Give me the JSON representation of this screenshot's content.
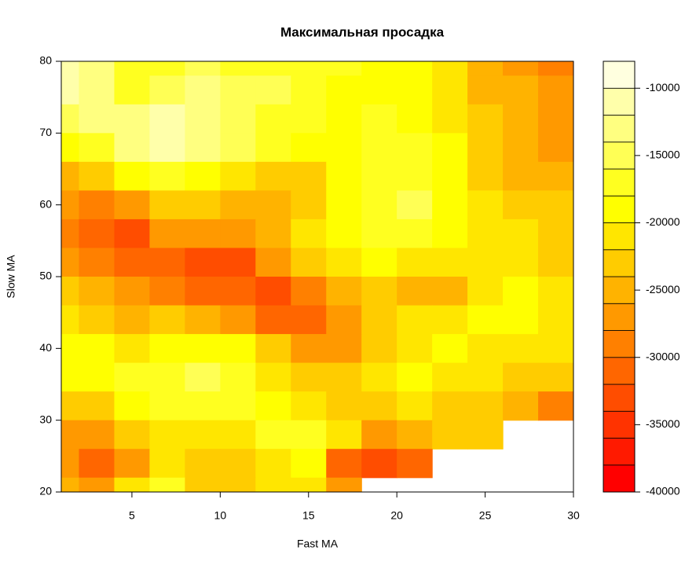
{
  "chart_data": {
    "type": "filled-contour",
    "title": "Максимальная просадка",
    "x_label": "Fast MA",
    "y_label": "Slow MA",
    "x": [
      1,
      3,
      5,
      7,
      9,
      11,
      13,
      15,
      17,
      19,
      21,
      23,
      25,
      27,
      29
    ],
    "y": [
      80,
      76,
      72,
      68,
      64,
      60,
      56,
      52,
      48,
      44,
      40,
      36,
      32,
      28,
      24,
      20
    ],
    "z": [
      [
        -12000,
        -14000,
        -17000,
        -17000,
        -16000,
        -17000,
        -17000,
        -17000,
        -18000,
        -19000,
        -20000,
        -22000,
        -26000,
        -28000,
        -30000
      ],
      [
        -11000,
        -14000,
        -17000,
        -16000,
        -14000,
        -15000,
        -16000,
        -17000,
        -19000,
        -20000,
        -20000,
        -22000,
        -25000,
        -26000,
        -28000
      ],
      [
        -15000,
        -14000,
        -13000,
        -12000,
        -13000,
        -15000,
        -17000,
        -18000,
        -19000,
        -18000,
        -19000,
        -21000,
        -24000,
        -26000,
        -28000
      ],
      [
        -20000,
        -17000,
        -13000,
        -12000,
        -13000,
        -15000,
        -18000,
        -20000,
        -19000,
        -17000,
        -17000,
        -20000,
        -23000,
        -25000,
        -27000
      ],
      [
        -25000,
        -24000,
        -20000,
        -18000,
        -19000,
        -22000,
        -24000,
        -24000,
        -20000,
        -18000,
        -17000,
        -20000,
        -23000,
        -25000,
        -26000
      ],
      [
        -28000,
        -30000,
        -28000,
        -24000,
        -24000,
        -25000,
        -26000,
        -24000,
        -20000,
        -17000,
        -16000,
        -19000,
        -22000,
        -24000,
        -24000
      ],
      [
        -30000,
        -32000,
        -33000,
        -28000,
        -27000,
        -27000,
        -25000,
        -22000,
        -19000,
        -17000,
        -17000,
        -20000,
        -22000,
        -22000,
        -24000
      ],
      [
        -27000,
        -30000,
        -31000,
        -31000,
        -33000,
        -33000,
        -28000,
        -24000,
        -21000,
        -20000,
        -21000,
        -22000,
        -22000,
        -21000,
        -24000
      ],
      [
        -24000,
        -26000,
        -28000,
        -30000,
        -32000,
        -31000,
        -33000,
        -29000,
        -25000,
        -24000,
        -25000,
        -25000,
        -22000,
        -20000,
        -22000
      ],
      [
        -22000,
        -24000,
        -26000,
        -24000,
        -26000,
        -28000,
        -31000,
        -31000,
        -27000,
        -23000,
        -22000,
        -21000,
        -20000,
        -20000,
        -21000
      ],
      [
        -20000,
        -20000,
        -22000,
        -20000,
        -19000,
        -20000,
        -24000,
        -28000,
        -27000,
        -24000,
        -21000,
        -20000,
        -21000,
        -21000,
        -22000
      ],
      [
        -20000,
        -19000,
        -18000,
        -17000,
        -16000,
        -17000,
        -21000,
        -24000,
        -23000,
        -21000,
        -20000,
        -21000,
        -22000,
        -23000,
        -23000
      ],
      [
        -24000,
        -23000,
        -20000,
        -18000,
        -17000,
        -18000,
        -20000,
        -21000,
        -24000,
        -24000,
        -22000,
        -23000,
        -24000,
        -26000,
        -30000
      ],
      [
        -28000,
        -27000,
        -24000,
        -21000,
        -21000,
        -22000,
        -18000,
        -17000,
        -22000,
        -27000,
        -25000,
        -24000,
        -24000,
        null,
        null
      ],
      [
        -28000,
        -32000,
        -27000,
        -22000,
        -24000,
        -24000,
        -22000,
        -20000,
        -31000,
        -34000,
        -32000,
        null,
        null,
        null,
        null
      ],
      [
        -25000,
        -28000,
        -22000,
        -18000,
        -23000,
        -24000,
        -22000,
        -21000,
        -28000,
        null,
        null,
        null,
        null,
        null,
        null
      ]
    ],
    "xlim": [
      1,
      30
    ],
    "ylim": [
      20,
      80
    ],
    "xticks": [
      5,
      10,
      15,
      20,
      25,
      30
    ],
    "yticks": [
      20,
      30,
      40,
      50,
      60,
      70,
      80
    ],
    "levels": [
      -40000,
      -38000,
      -36000,
      -34000,
      -32000,
      -30000,
      -28000,
      -26000,
      -24000,
      -22000,
      -20000,
      -18000,
      -16000,
      -14000,
      -12000,
      -10000,
      -8000
    ],
    "colors": [
      "#FF0000",
      "#FF1A00",
      "#FF3300",
      "#FF4D00",
      "#FF6600",
      "#FF8000",
      "#FF9900",
      "#FFB300",
      "#FFCC00",
      "#FFE600",
      "#FFFF00",
      "#FFFF20",
      "#FFFF55",
      "#FFFF80",
      "#FFFFAA",
      "#FFFFDF"
    ],
    "zticks": [
      -40000,
      -35000,
      -30000,
      -25000,
      -20000,
      -15000,
      -10000
    ]
  }
}
